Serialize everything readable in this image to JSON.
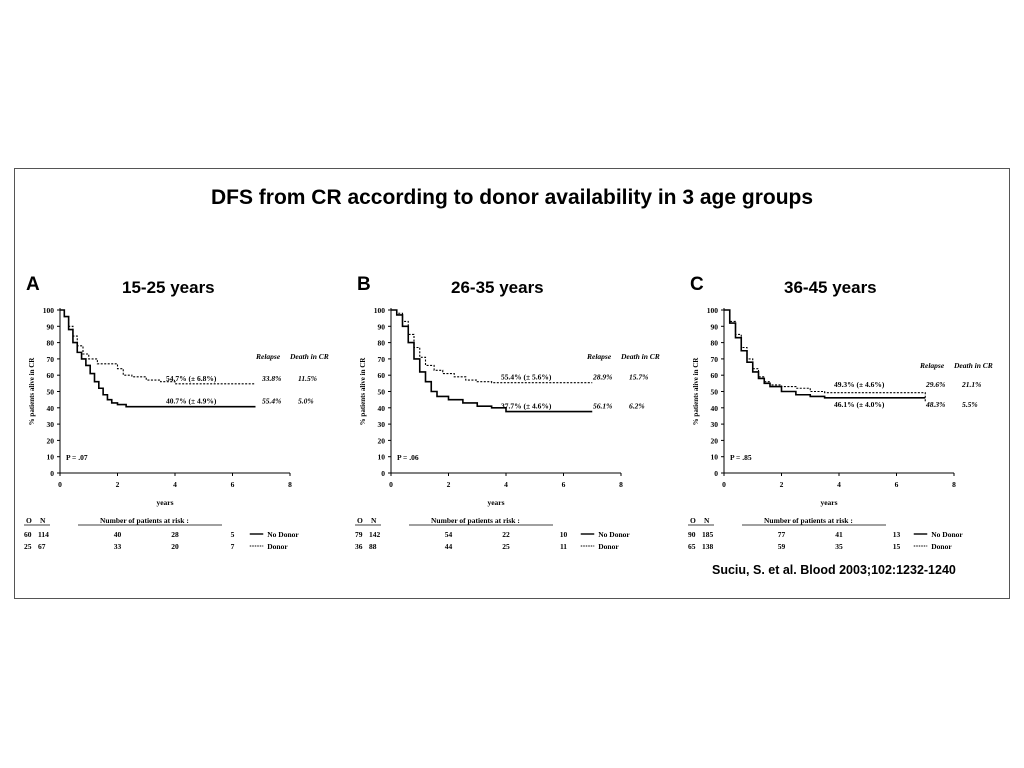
{
  "title": "DFS from CR according to donor availability in 3 age groups",
  "citation": "Suciu, S. et al. Blood 2003;102:1232-1240",
  "chart_data": [
    {
      "type": "line",
      "panel_label": "A",
      "subtitle": "15-25 years",
      "xlabel": "years",
      "ylabel": "% patients alive in CR",
      "xlim": [
        0,
        8
      ],
      "ylim": [
        0,
        100
      ],
      "xticks": [
        0,
        2,
        4,
        6,
        8
      ],
      "yticks": [
        0,
        10,
        20,
        30,
        40,
        50,
        60,
        70,
        80,
        90,
        100
      ],
      "p_value": "P = .07",
      "legend_header": [
        "Relapse",
        "Death in CR"
      ],
      "series": [
        {
          "name": "No Donor",
          "style": "solid",
          "x": [
            0,
            0.15,
            0.3,
            0.45,
            0.6,
            0.75,
            0.9,
            1.05,
            1.2,
            1.35,
            1.5,
            1.65,
            1.8,
            2.0,
            2.3,
            3,
            4,
            5,
            6.8
          ],
          "y": [
            100,
            96,
            88,
            80,
            74,
            70,
            66,
            61,
            56,
            52,
            48,
            45,
            43,
            42,
            40.7,
            40.7,
            40.7,
            40.7,
            40.7
          ],
          "annotation": "40.7% (± 4.9%)",
          "relapse": "55.4%",
          "death_in_cr": "5.0%"
        },
        {
          "name": "Donor",
          "style": "dotted",
          "x": [
            0,
            0.15,
            0.3,
            0.45,
            0.6,
            0.8,
            1.0,
            1.3,
            1.5,
            2.0,
            2.2,
            2.5,
            3.0,
            3.5,
            4.0,
            5.0,
            6.8
          ],
          "y": [
            100,
            96,
            90,
            84,
            78,
            73,
            70,
            67,
            67,
            64,
            60,
            59,
            57,
            56,
            54.7,
            54.7,
            54.7
          ],
          "annotation": "54.7% (± 6.8%)",
          "relapse": "33.8%",
          "death_in_cr": "11.5%"
        }
      ],
      "risk_table": {
        "header_o": "O",
        "header_n": "N",
        "caption": "Number of patients at risk :",
        "rows": [
          {
            "o": "60",
            "n": "114",
            "values": [
              "40",
              "28",
              "5"
            ],
            "label": "No Donor",
            "style": "solid"
          },
          {
            "o": "25",
            "n": "67",
            "values": [
              "33",
              "20",
              "7"
            ],
            "label": "Donor",
            "style": "dotted"
          }
        ]
      }
    },
    {
      "type": "line",
      "panel_label": "B",
      "subtitle": "26-35 years",
      "xlabel": "years",
      "ylabel": "% patients alive in CR",
      "xlim": [
        0,
        8
      ],
      "ylim": [
        0,
        100
      ],
      "xticks": [
        0,
        2,
        4,
        6,
        8
      ],
      "yticks": [
        0,
        10,
        20,
        30,
        40,
        50,
        60,
        70,
        80,
        90,
        100
      ],
      "p_value": "P = .06",
      "legend_header": [
        "Relapse",
        "Death in CR"
      ],
      "series": [
        {
          "name": "No Donor",
          "style": "solid",
          "x": [
            0,
            0.2,
            0.4,
            0.6,
            0.8,
            1.0,
            1.2,
            1.4,
            1.6,
            2.0,
            2.5,
            3.0,
            3.5,
            4.0,
            5.0,
            7.0
          ],
          "y": [
            100,
            97,
            90,
            80,
            70,
            62,
            56,
            50,
            47,
            45,
            43,
            41,
            40,
            37.7,
            37.7,
            37.7
          ],
          "annotation": "37.7% (± 4.6%)",
          "relapse": "56.1%",
          "death_in_cr": "6.2%"
        },
        {
          "name": "Donor",
          "style": "dotted",
          "x": [
            0,
            0.2,
            0.4,
            0.6,
            0.8,
            1.0,
            1.2,
            1.5,
            1.8,
            2.2,
            2.6,
            3.0,
            3.5,
            5.0,
            7.0
          ],
          "y": [
            100,
            98,
            93,
            85,
            77,
            71,
            66,
            63,
            61,
            59,
            57,
            56,
            55.4,
            55.4,
            55.4
          ],
          "annotation": "55.4% (± 5.6%)",
          "relapse": "28.9%",
          "death_in_cr": "15.7%"
        }
      ],
      "risk_table": {
        "header_o": "O",
        "header_n": "N",
        "caption": "Number of patients at risk :",
        "rows": [
          {
            "o": "79",
            "n": "142",
            "values": [
              "54",
              "22",
              "10"
            ],
            "label": "No Donor",
            "style": "solid"
          },
          {
            "o": "36",
            "n": "88",
            "values": [
              "44",
              "25",
              "11"
            ],
            "label": "Donor",
            "style": "dotted"
          }
        ]
      }
    },
    {
      "type": "line",
      "panel_label": "C",
      "subtitle": "36-45 years",
      "xlabel": "years",
      "ylabel": "% patients alive in CR",
      "xlim": [
        0,
        8
      ],
      "ylim": [
        0,
        100
      ],
      "xticks": [
        0,
        2,
        4,
        6,
        8
      ],
      "yticks": [
        0,
        10,
        20,
        30,
        40,
        50,
        60,
        70,
        80,
        90,
        100
      ],
      "p_value": "P = .85",
      "legend_header": [
        "Relapse",
        "Death in CR"
      ],
      "series": [
        {
          "name": "No Donor",
          "style": "solid",
          "x": [
            0,
            0.2,
            0.4,
            0.6,
            0.8,
            1.0,
            1.2,
            1.4,
            1.6,
            2.0,
            2.5,
            3.0,
            3.5,
            5.0,
            7.0
          ],
          "y": [
            100,
            92,
            83,
            75,
            68,
            62,
            58,
            55,
            53,
            50,
            48,
            47,
            46.1,
            46.1,
            46.1
          ],
          "annotation": "46.1% (± 4.0%)",
          "relapse": "48.3%",
          "death_in_cr": "5.5%"
        },
        {
          "name": "Donor",
          "style": "dotted",
          "x": [
            0,
            0.2,
            0.4,
            0.6,
            0.8,
            1.0,
            1.2,
            1.4,
            1.6,
            2.0,
            2.5,
            3.0,
            3.5,
            5.0,
            7.0
          ],
          "y": [
            100,
            93,
            85,
            77,
            70,
            64,
            59,
            56,
            54,
            53,
            52,
            50,
            49.3,
            49.3,
            44
          ],
          "annotation": "49.3% (± 4.6%)",
          "relapse": "29.6%",
          "death_in_cr": "21.1%"
        }
      ],
      "risk_table": {
        "header_o": "O",
        "header_n": "N",
        "caption": "Number of patients at risk :",
        "rows": [
          {
            "o": "90",
            "n": "185",
            "values": [
              "77",
              "41",
              "13"
            ],
            "label": "No Donor",
            "style": "solid"
          },
          {
            "o": "65",
            "n": "138",
            "values": [
              "59",
              "35",
              "15"
            ],
            "label": "Donor",
            "style": "dotted"
          }
        ]
      }
    }
  ]
}
